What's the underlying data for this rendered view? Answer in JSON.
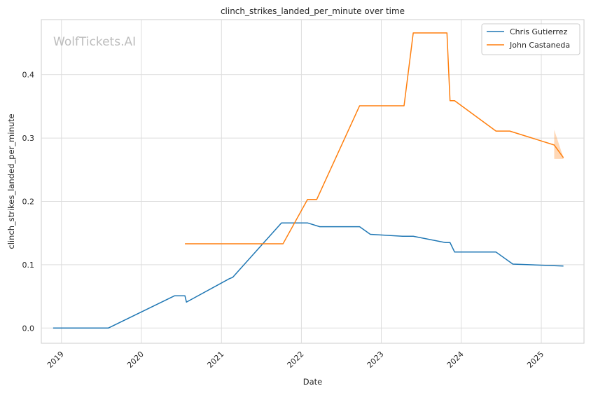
{
  "chart_data": {
    "type": "line",
    "title": "clinch_strikes_landed_per_minute over time",
    "xlabel": "Date",
    "ylabel": "clinch_strikes_landed_per_minute",
    "watermark": "WolfTickets.AI",
    "xlim": [
      "2018-10-01",
      "2025-07-15"
    ],
    "ylim": [
      -0.024,
      0.487
    ],
    "x_ticks": [
      "2019",
      "2020",
      "2021",
      "2022",
      "2023",
      "2024",
      "2025"
    ],
    "y_ticks": [
      "0.0",
      "0.1",
      "0.2",
      "0.3",
      "0.4"
    ],
    "grid": true,
    "legend_position": "top-right",
    "series": [
      {
        "name": "Chris Gutierrez",
        "color": "#1f77b4",
        "x": [
          "2018-11-24",
          "2019-08-03",
          "2020-06-01",
          "2020-07-18",
          "2020-07-25",
          "2021-02-06",
          "2021-02-21",
          "2021-10-02",
          "2022-01-29",
          "2022-03-26",
          "2022-09-24",
          "2022-11-12",
          "2023-04-08",
          "2023-05-27",
          "2023-10-21",
          "2023-11-11",
          "2023-12-02",
          "2024-06-08",
          "2024-08-24",
          "2025-04-12"
        ],
        "y": [
          0.0,
          0.0,
          0.051,
          0.051,
          0.041,
          0.078,
          0.08,
          0.166,
          0.166,
          0.16,
          0.16,
          0.148,
          0.145,
          0.145,
          0.135,
          0.135,
          0.12,
          0.12,
          0.101,
          0.098
        ]
      },
      {
        "name": "John Castaneda",
        "color": "#ff7f0e",
        "x": [
          "2020-07-18",
          "2021-10-09",
          "2022-01-29",
          "2022-03-12",
          "2022-09-24",
          "2023-04-15",
          "2023-05-27",
          "2023-10-28",
          "2023-11-11",
          "2023-12-02",
          "2024-06-08",
          "2024-08-10",
          "2025-03-01",
          "2025-04-12"
        ],
        "y": [
          0.133,
          0.133,
          0.203,
          0.203,
          0.351,
          0.351,
          0.466,
          0.466,
          0.359,
          0.359,
          0.311,
          0.311,
          0.289,
          0.269
        ]
      }
    ],
    "confidence_band": {
      "series": "John Castaneda",
      "x": [
        "2025-03-01",
        "2025-04-12"
      ],
      "lower": [
        0.267,
        0.267
      ],
      "upper": [
        0.313,
        0.269
      ]
    }
  }
}
